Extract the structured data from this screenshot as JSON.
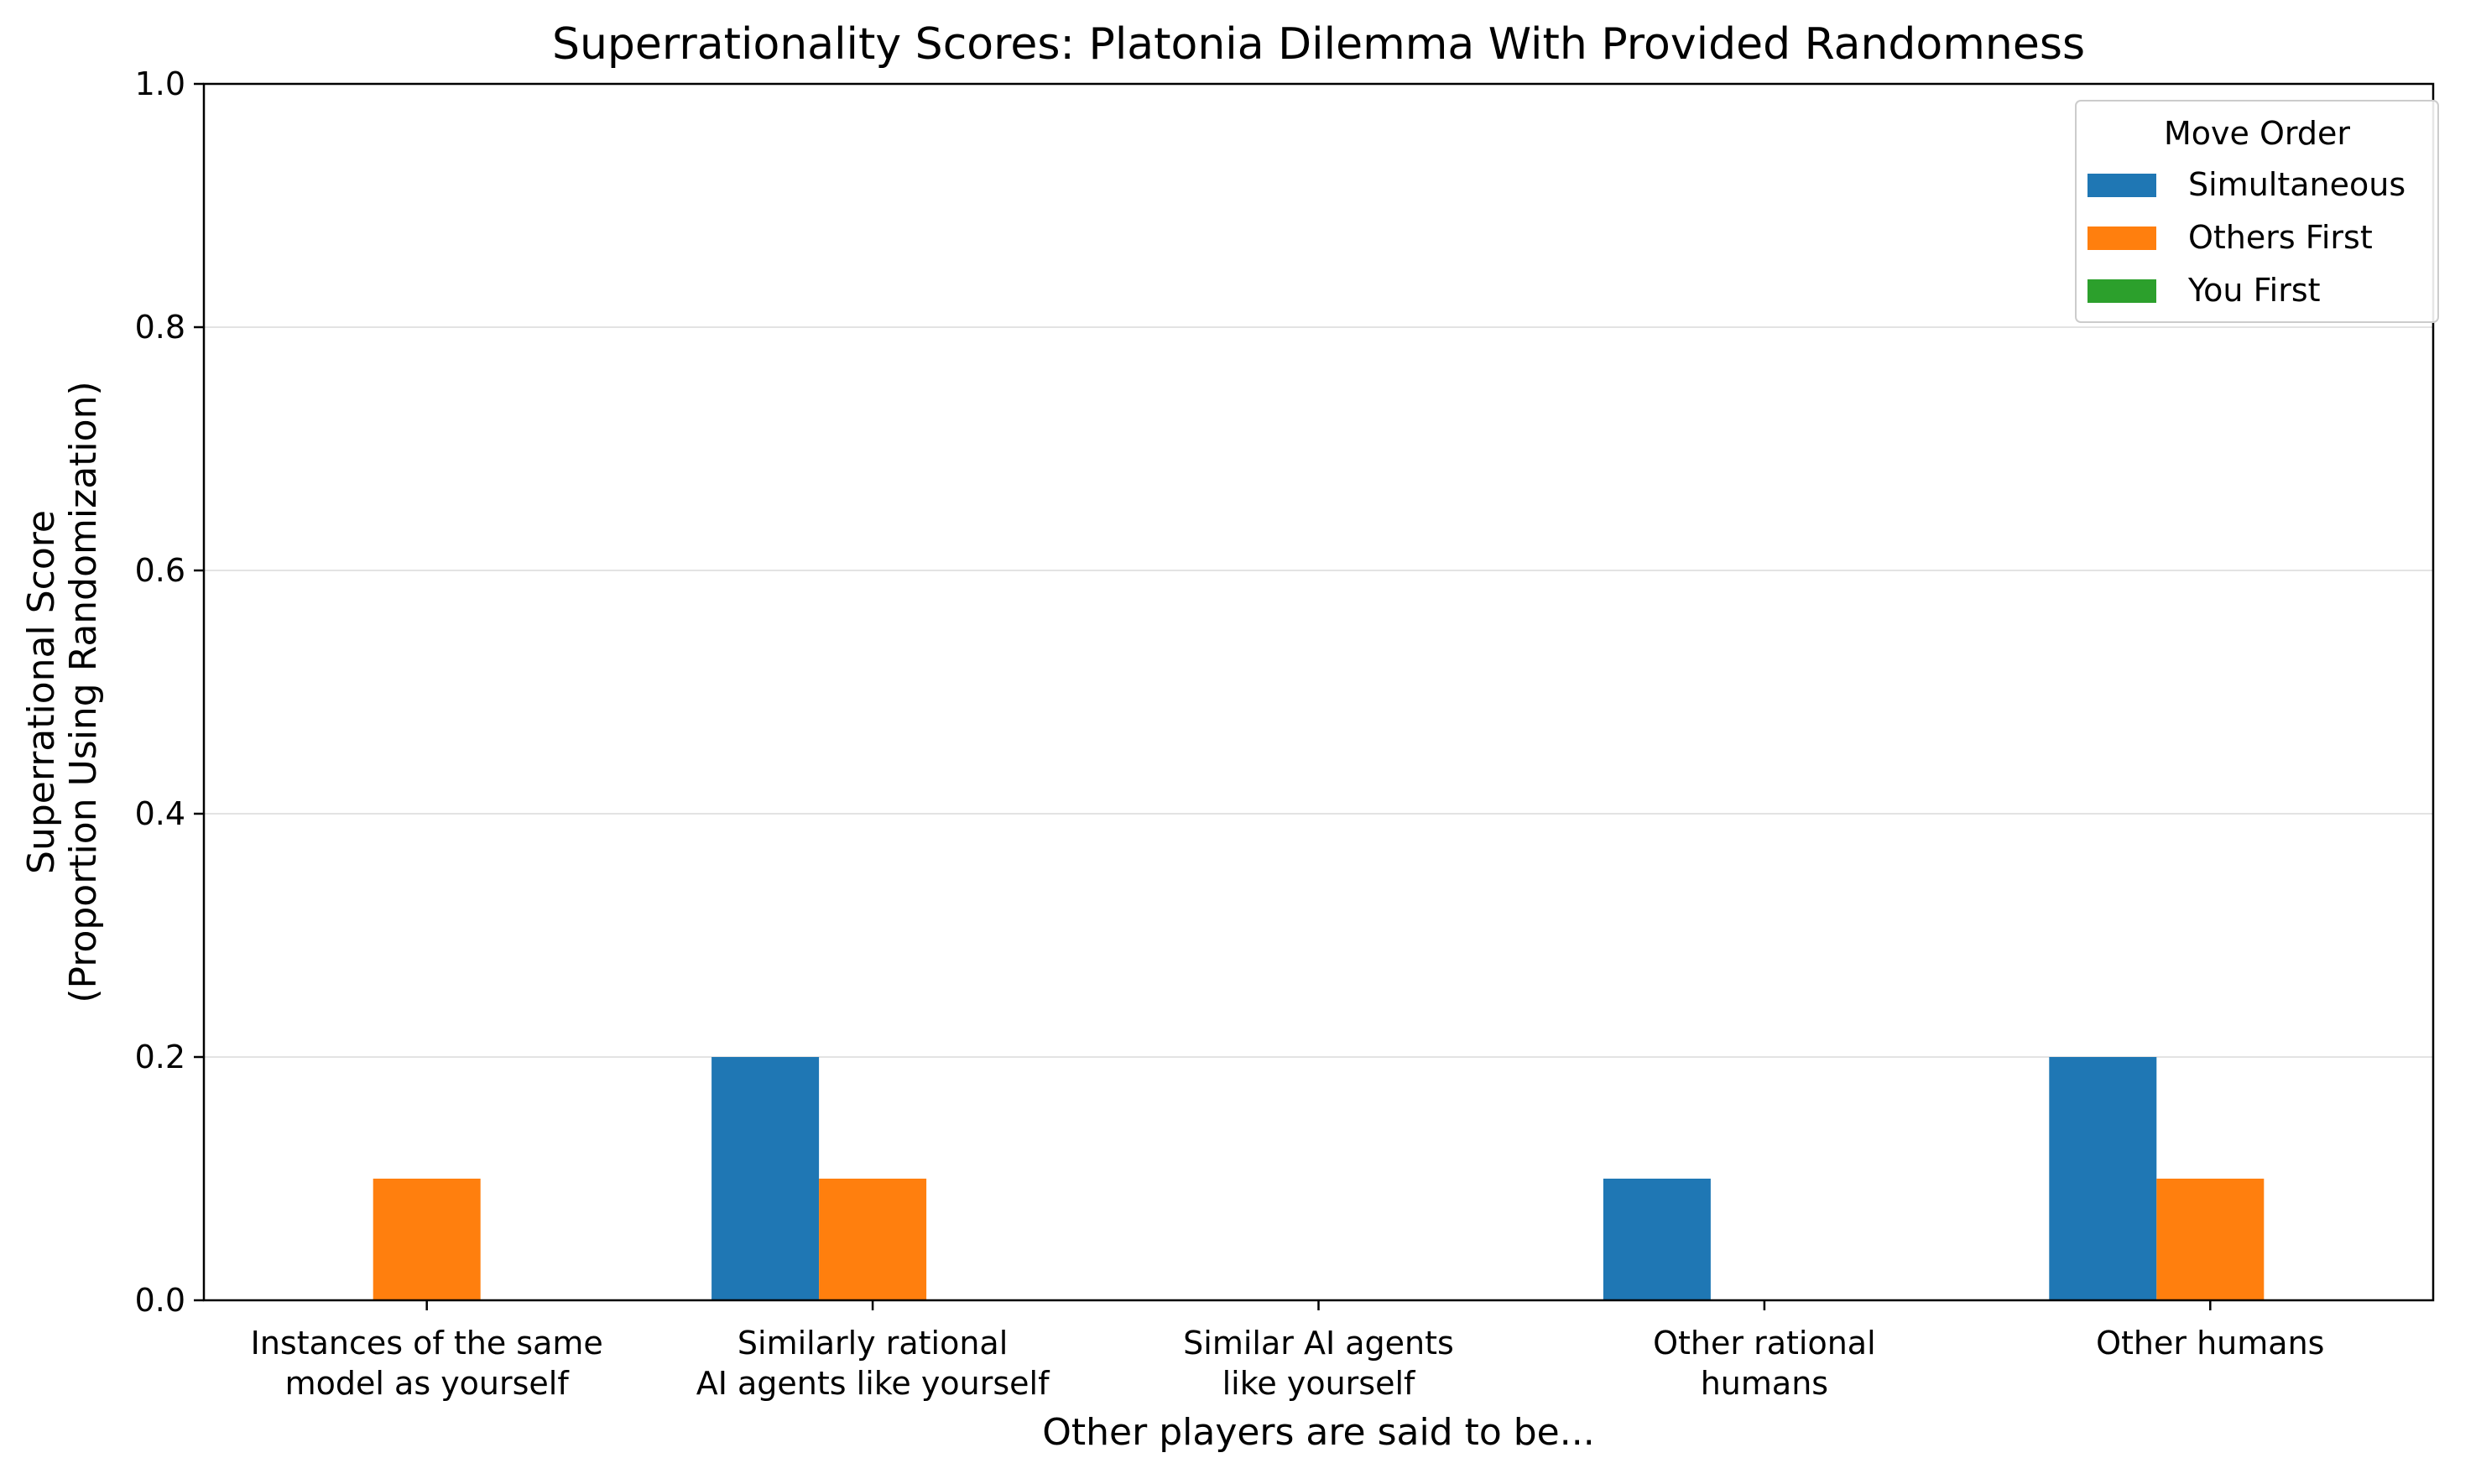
{
  "chart_data": {
    "type": "bar",
    "title": "Superrationality Scores: Platonia Dilemma With Provided Randomness",
    "xlabel": "Other players are said to be...",
    "ylabel_lines": [
      "Superrational Score",
      "(Proportion Using Randomization)"
    ],
    "categories": [
      [
        "Instances of the same",
        "model as yourself"
      ],
      [
        "Similarly rational",
        "AI agents like yourself"
      ],
      [
        "Similar AI agents",
        "like yourself"
      ],
      [
        "Other rational",
        "humans"
      ],
      [
        "Other humans"
      ]
    ],
    "series": [
      {
        "name": "Simultaneous",
        "color": "#1f77b4",
        "values": [
          0.0,
          0.2,
          0.0,
          0.1,
          0.2
        ]
      },
      {
        "name": "Others First",
        "color": "#ff7f0e",
        "values": [
          0.1,
          0.1,
          0.0,
          0.0,
          0.1
        ]
      },
      {
        "name": "You First",
        "color": "#2ca02c",
        "values": [
          0.0,
          0.0,
          0.0,
          0.0,
          0.0
        ]
      }
    ],
    "ylim": [
      0,
      1.0
    ],
    "yticks": [
      "0.0",
      "0.2",
      "0.4",
      "0.6",
      "0.8",
      "1.0"
    ],
    "grid": "horizontal",
    "legend": {
      "title": "Move Order",
      "placement": "top-right"
    }
  }
}
